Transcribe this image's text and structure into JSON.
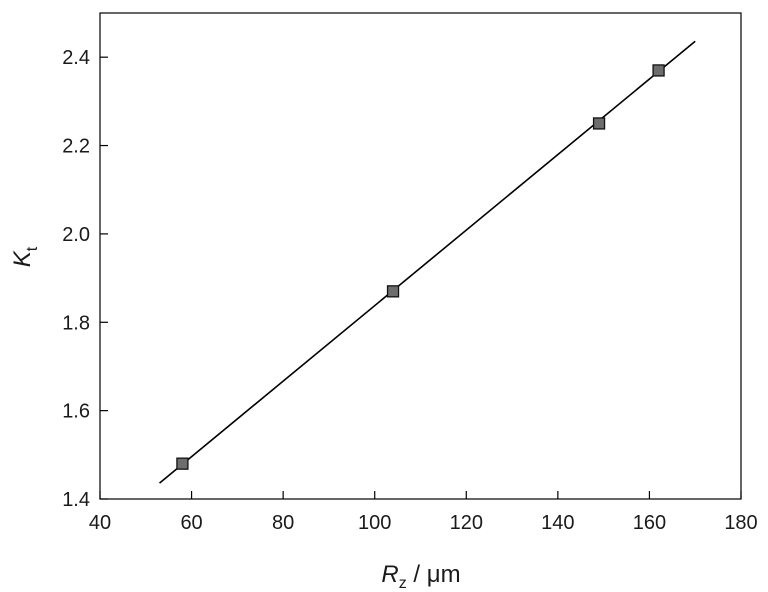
{
  "chart_data": {
    "type": "scatter",
    "title": "",
    "xlabel": {
      "symbol": "R",
      "subscript": "z",
      "unit": " / μm"
    },
    "ylabel": {
      "symbol": "K",
      "subscript": "t"
    },
    "xlim": [
      40,
      180
    ],
    "ylim": [
      1.4,
      2.5
    ],
    "x_ticks": [
      40,
      60,
      80,
      100,
      120,
      140,
      160,
      180
    ],
    "y_ticks": [
      1.4,
      1.6,
      1.8,
      2.0,
      2.2,
      2.4
    ],
    "x_tick_labels": [
      "40",
      "60",
      "80",
      "100",
      "120",
      "140",
      "160",
      "180"
    ],
    "y_tick_labels": [
      "1.4",
      "1.6",
      "1.8",
      "2.0",
      "2.2",
      "2.4"
    ],
    "grid": false,
    "legend": "none",
    "series": [
      {
        "marker": "square",
        "color": "#6d6d6d",
        "x": [
          58,
          104,
          149,
          162
        ],
        "y": [
          1.48,
          1.87,
          2.25,
          2.37
        ]
      }
    ],
    "fit_line": {
      "x": [
        53,
        170
      ],
      "y": [
        1.436,
        2.436
      ],
      "color": "#000000"
    }
  }
}
